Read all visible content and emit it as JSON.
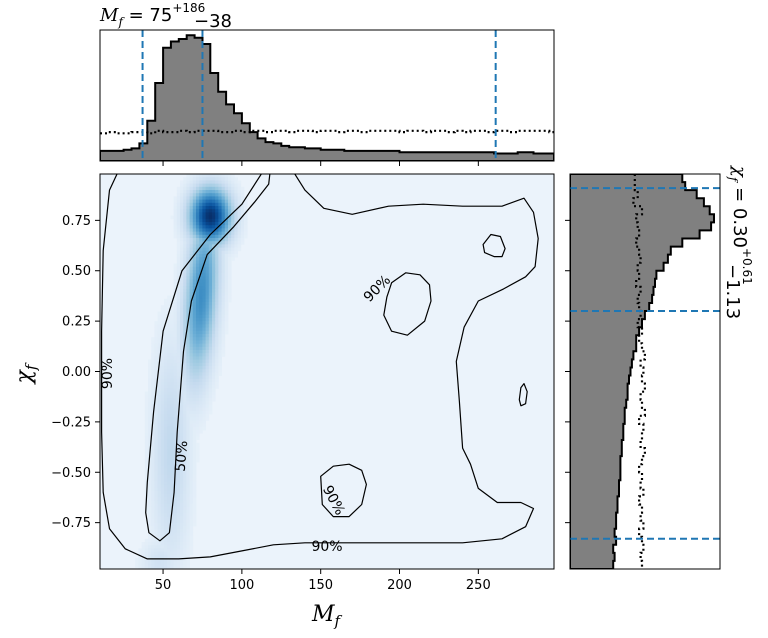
{
  "chart_data": {
    "type": "corner-plot",
    "title_top": {
      "symbol": "M",
      "sub": "f",
      "eq": " = 75",
      "sup": "+186",
      "low": "−38"
    },
    "title_right": {
      "symbol": "χ",
      "sub": "f",
      "eq": " = 0.30",
      "sup": "+0.61",
      "low": "−1.13"
    },
    "xlabel": {
      "symbol": "M",
      "sub": "f"
    },
    "ylabel": {
      "symbol": "χ",
      "sub": "f"
    },
    "xlim": [
      10,
      298
    ],
    "ylim": [
      -0.98,
      0.98
    ],
    "xticks": [
      50,
      100,
      150,
      200,
      250
    ],
    "xtick_labels": [
      "50",
      "100",
      "150",
      "200",
      "250"
    ],
    "yticks": [
      0.75,
      0.5,
      0.25,
      0.0,
      -0.25,
      -0.5,
      -0.75
    ],
    "ytick_labels": [
      "0.75",
      "0.50",
      "0.25",
      "0.00",
      "−0.25",
      "−0.50",
      "−0.75"
    ],
    "mf_quantiles": [
      37,
      75,
      261
    ],
    "chi_quantiles": [
      -0.83,
      0.3,
      0.91
    ],
    "colors": {
      "hist_fill": "#808080",
      "quantile_line": "#1f77b4",
      "density_cmap": "Blues",
      "contour": "#000000"
    },
    "contour_labels": [
      {
        "text": "90%",
        "mf": 15,
        "chi": -0.01,
        "angle": -90
      },
      {
        "text": "50%",
        "mf": 62,
        "chi": -0.42,
        "angle": -85
      },
      {
        "text": "90%",
        "mf": 186,
        "chi": 0.41,
        "angle": -45
      },
      {
        "text": "90%",
        "mf": 158,
        "chi": -0.64,
        "angle": 62
      },
      {
        "text": "90%",
        "mf": 154,
        "chi": -0.87,
        "angle": 0
      }
    ],
    "hist_mf": {
      "x_edges": [
        10,
        15,
        20,
        25,
        30,
        35,
        40,
        45,
        50,
        55,
        60,
        65,
        70,
        75,
        80,
        85,
        90,
        95,
        100,
        105,
        110,
        115,
        120,
        125,
        130,
        135,
        140,
        145,
        150,
        155,
        160,
        165,
        170,
        175,
        180,
        185,
        190,
        195,
        200,
        205,
        210,
        215,
        220,
        225,
        230,
        235,
        240,
        245,
        250,
        255,
        260,
        265,
        270,
        275,
        280,
        285,
        290,
        295,
        298
      ],
      "density": [
        0.08,
        0.08,
        0.08,
        0.09,
        0.1,
        0.14,
        0.32,
        0.62,
        0.9,
        0.95,
        0.97,
        1.0,
        0.98,
        0.93,
        0.7,
        0.55,
        0.45,
        0.38,
        0.3,
        0.23,
        0.18,
        0.15,
        0.14,
        0.12,
        0.11,
        0.11,
        0.1,
        0.1,
        0.09,
        0.09,
        0.09,
        0.08,
        0.08,
        0.08,
        0.08,
        0.08,
        0.08,
        0.08,
        0.07,
        0.07,
        0.07,
        0.07,
        0.07,
        0.07,
        0.07,
        0.07,
        0.07,
        0.07,
        0.07,
        0.07,
        0.06,
        0.06,
        0.06,
        0.07,
        0.07,
        0.06,
        0.06,
        0.06
      ],
      "prior": [
        0.22,
        0.23,
        0.22,
        0.22,
        0.23,
        0.23,
        0.22,
        0.24,
        0.23,
        0.23,
        0.24,
        0.23,
        0.24,
        0.24,
        0.24,
        0.23,
        0.23,
        0.24,
        0.23,
        0.24,
        0.24,
        0.23,
        0.24,
        0.24,
        0.23,
        0.24,
        0.24,
        0.23,
        0.24,
        0.24,
        0.23,
        0.24,
        0.24,
        0.23,
        0.24,
        0.24,
        0.24,
        0.24,
        0.23,
        0.24,
        0.24,
        0.23,
        0.24,
        0.24,
        0.23,
        0.24,
        0.23,
        0.24,
        0.24,
        0.23,
        0.24,
        0.24,
        0.23,
        0.24,
        0.24,
        0.24,
        0.24,
        0.23
      ]
    },
    "hist_chi": {
      "y_edges": [
        0.98,
        0.94,
        0.9,
        0.86,
        0.82,
        0.78,
        0.74,
        0.7,
        0.66,
        0.62,
        0.58,
        0.54,
        0.5,
        0.46,
        0.42,
        0.38,
        0.34,
        0.3,
        0.26,
        0.22,
        0.18,
        0.14,
        0.1,
        0.06,
        0.02,
        -0.02,
        -0.06,
        -0.1,
        -0.14,
        -0.18,
        -0.22,
        -0.26,
        -0.3,
        -0.34,
        -0.38,
        -0.42,
        -0.46,
        -0.5,
        -0.54,
        -0.58,
        -0.62,
        -0.66,
        -0.7,
        -0.74,
        -0.78,
        -0.82,
        -0.86,
        -0.9,
        -0.94,
        -0.98
      ],
      "density": [
        0.78,
        0.8,
        0.88,
        0.93,
        0.97,
        1.0,
        0.98,
        0.9,
        0.78,
        0.7,
        0.68,
        0.65,
        0.6,
        0.59,
        0.58,
        0.57,
        0.55,
        0.52,
        0.5,
        0.48,
        0.46,
        0.46,
        0.44,
        0.43,
        0.42,
        0.41,
        0.4,
        0.4,
        0.39,
        0.38,
        0.38,
        0.37,
        0.37,
        0.36,
        0.36,
        0.35,
        0.35,
        0.35,
        0.34,
        0.34,
        0.33,
        0.33,
        0.32,
        0.32,
        0.31,
        0.32,
        0.3,
        0.31,
        0.3
      ],
      "prior": [
        0.45,
        0.45,
        0.47,
        0.44,
        0.5,
        0.46,
        0.47,
        0.48,
        0.46,
        0.48,
        0.49,
        0.47,
        0.48,
        0.46,
        0.49,
        0.47,
        0.48,
        0.49,
        0.47,
        0.5,
        0.48,
        0.5,
        0.52,
        0.49,
        0.51,
        0.5,
        0.52,
        0.49,
        0.5,
        0.52,
        0.48,
        0.51,
        0.5,
        0.49,
        0.52,
        0.5,
        0.48,
        0.5,
        0.49,
        0.51,
        0.48,
        0.5,
        0.49,
        0.51,
        0.48,
        0.5,
        0.51,
        0.49,
        0.5
      ]
    },
    "density_2d": {
      "peak": {
        "mf": 80,
        "chi": 0.77
      },
      "background_level": 0.06
    }
  }
}
